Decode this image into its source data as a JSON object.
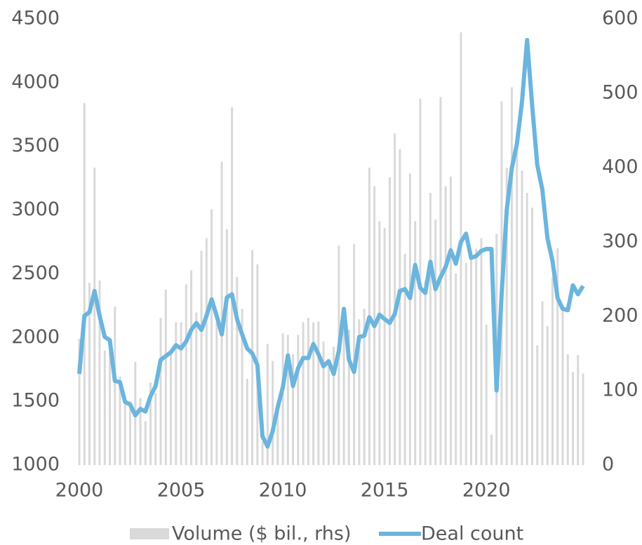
{
  "chart_data": {
    "type": "combo",
    "x": [
      2000,
      2000.25,
      2000.5,
      2000.75,
      2001,
      2001.25,
      2001.5,
      2001.75,
      2002,
      2002.25,
      2002.5,
      2002.75,
      2003,
      2003.25,
      2003.5,
      2003.75,
      2004,
      2004.25,
      2004.5,
      2004.75,
      2005,
      2005.25,
      2005.5,
      2005.75,
      2006,
      2006.25,
      2006.5,
      2006.75,
      2007,
      2007.25,
      2007.5,
      2007.75,
      2008,
      2008.25,
      2008.5,
      2008.75,
      2009,
      2009.25,
      2009.5,
      2009.75,
      2010,
      2010.25,
      2010.5,
      2010.75,
      2011,
      2011.25,
      2011.5,
      2011.75,
      2012,
      2012.25,
      2012.5,
      2012.75,
      2013,
      2013.25,
      2013.5,
      2013.75,
      2014,
      2014.25,
      2014.5,
      2014.75,
      2015,
      2015.25,
      2015.5,
      2015.75,
      2016,
      2016.25,
      2016.5,
      2016.75,
      2017,
      2017.25,
      2017.5,
      2017.75,
      2018,
      2018.25,
      2018.5,
      2018.75,
      2019,
      2019.25,
      2019.5,
      2019.75,
      2020,
      2020.25,
      2020.5,
      2020.75,
      2021,
      2021.25,
      2021.5,
      2021.75,
      2022,
      2022.25,
      2022.5,
      2022.75,
      2023,
      2023.25,
      2023.5,
      2023.75,
      2024,
      2024.25,
      2024.5,
      2024.75
    ],
    "xlim": [
      2000,
      2024.75
    ],
    "xticks": [
      2000,
      2005,
      2010,
      2015,
      2020
    ],
    "ylim": [
      1000,
      4500
    ],
    "yticks": [
      1000,
      1500,
      2000,
      2500,
      3000,
      3500,
      4000,
      4500
    ],
    "y2lim": [
      0,
      600
    ],
    "y2ticks": [
      0,
      100,
      200,
      300,
      400,
      500,
      600
    ],
    "legend": "bottom",
    "series": [
      {
        "name": "Volume ($ bil., rhs)",
        "type": "bar",
        "axis": "y2",
        "color": "#d9d9d9",
        "values": [
          170,
          487,
          245,
          400,
          248,
          154,
          163,
          213,
          119,
          85,
          86,
          139,
          90,
          59,
          111,
          97,
          198,
          236,
          154,
          192,
          192,
          243,
          262,
          205,
          288,
          305,
          344,
          192,
          408,
          317,
          481,
          253,
          210,
          116,
          289,
          270,
          31,
          163,
          140,
          78,
          177,
          175,
          149,
          175,
          192,
          198,
          192,
          193,
          166,
          135,
          159,
          295,
          182,
          182,
          297,
          196,
          210,
          400,
          375,
          328,
          319,
          387,
          446,
          425,
          284,
          392,
          328,
          493,
          248,
          366,
          330,
          495,
          375,
          388,
          258,
          582,
          272,
          283,
          291,
          305,
          189,
          41,
          311,
          489,
          400,
          508,
          437,
          396,
          366,
          346,
          161,
          220,
          187,
          253,
          292,
          215,
          149,
          125,
          148,
          123
        ]
      },
      {
        "name": "Deal count",
        "type": "line",
        "color": "#6bb5de",
        "values": [
          1715,
          2170,
          2200,
          2365,
          2170,
          2005,
          1980,
          1660,
          1650,
          1495,
          1475,
          1390,
          1440,
          1420,
          1540,
          1620,
          1825,
          1855,
          1885,
          1940,
          1915,
          1970,
          2060,
          2115,
          2060,
          2170,
          2300,
          2170,
          2025,
          2315,
          2340,
          2145,
          2025,
          1915,
          1875,
          1785,
          1225,
          1145,
          1265,
          1455,
          1610,
          1860,
          1620,
          1760,
          1840,
          1840,
          1950,
          1870,
          1775,
          1815,
          1715,
          1895,
          2225,
          1825,
          1730,
          2005,
          2015,
          2160,
          2090,
          2180,
          2145,
          2115,
          2185,
          2365,
          2380,
          2310,
          2570,
          2390,
          2350,
          2595,
          2380,
          2475,
          2555,
          2685,
          2580,
          2750,
          2815,
          2625,
          2640,
          2680,
          2695,
          2695,
          1585,
          2340,
          3000,
          3330,
          3520,
          3850,
          4335,
          3820,
          3355,
          3160,
          2780,
          2600,
          2310,
          2225,
          2215,
          2410,
          2340,
          2405
        ]
      }
    ]
  }
}
